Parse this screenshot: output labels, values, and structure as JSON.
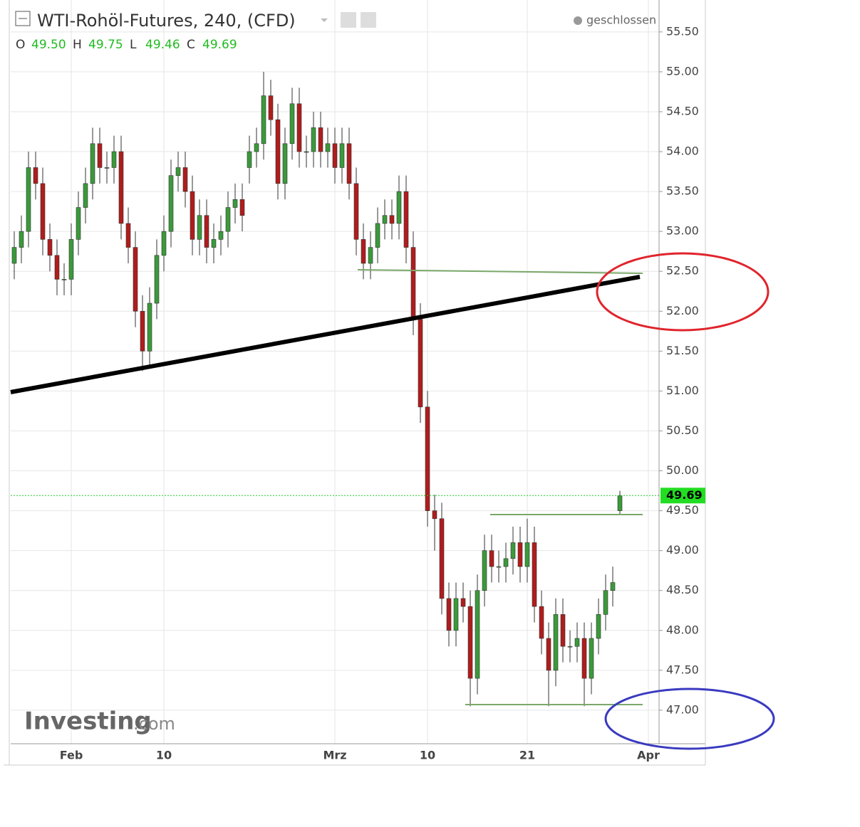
{
  "chart_data": {
    "type": "candlestick",
    "title": "WTI-Rohöl-Futures, 240, (CFD)",
    "status": "geschlossen",
    "ohlc_header": [
      {
        "label": "O",
        "value": "49.50"
      },
      {
        "label": "H",
        "value": "49.75"
      },
      {
        "label": "L",
        "value": "49.46"
      },
      {
        "label": "C",
        "value": "49.69"
      }
    ],
    "watermark": {
      "brand": "Investing",
      "suffix": ".com"
    },
    "up_color": "#3a9a3a",
    "down_color": "#b01c1c",
    "grid": true,
    "ylim": [
      46.58,
      55.9
    ],
    "yticks": [
      {
        "value": 47,
        "label": "47.00"
      },
      {
        "value": 47.5,
        "label": "47.50"
      },
      {
        "value": 48,
        "label": "48.00"
      },
      {
        "value": 48.5,
        "label": "48.50"
      },
      {
        "value": 49,
        "label": "49.00"
      },
      {
        "value": 49.5,
        "label": "49.50"
      },
      {
        "value": 50,
        "label": "50.00"
      },
      {
        "value": 50.5,
        "label": "50.50"
      },
      {
        "value": 51,
        "label": "51.00"
      },
      {
        "value": 51.5,
        "label": "51.50"
      },
      {
        "value": 52,
        "label": "52.00"
      },
      {
        "value": 52.5,
        "label": "52.50"
      },
      {
        "value": 53,
        "label": "53.00"
      },
      {
        "value": 53.5,
        "label": "53.50"
      },
      {
        "value": 54,
        "label": "54.00"
      },
      {
        "value": 54.5,
        "label": "54.50"
      },
      {
        "value": 55,
        "label": "55.00"
      },
      {
        "value": 55.5,
        "label": "55.50"
      }
    ],
    "last_price": {
      "value": 49.69,
      "label": "49.69"
    },
    "categories": [
      null,
      null,
      null,
      null,
      null,
      null,
      null,
      null,
      "Feb",
      null,
      null,
      null,
      null,
      null,
      null,
      null,
      null,
      null,
      null,
      null,
      null,
      "10",
      null,
      null,
      null,
      null,
      null,
      null,
      null,
      null,
      null,
      null,
      null,
      null,
      null,
      null,
      null,
      null,
      null,
      null,
      null,
      null,
      null,
      null,
      null,
      "Mrz",
      null,
      null,
      null,
      null,
      null,
      null,
      null,
      null,
      null,
      null,
      null,
      null,
      "10",
      null,
      null,
      null,
      null,
      null,
      null,
      null,
      null,
      null,
      null,
      null,
      null,
      null,
      "21",
      null,
      null,
      null,
      null,
      null,
      null,
      null,
      null,
      null,
      null,
      null,
      null,
      null,
      null,
      null,
      null,
      "Apr",
      null
    ],
    "open": [
      52.6,
      52.8,
      53.0,
      53.8,
      53.6,
      52.9,
      52.7,
      52.4,
      52.4,
      52.9,
      53.3,
      53.6,
      54.1,
      53.8,
      53.8,
      54.0,
      53.1,
      52.8,
      52.0,
      51.5,
      52.1,
      52.7,
      53.0,
      53.7,
      53.8,
      53.5,
      52.9,
      53.2,
      52.8,
      52.9,
      53.0,
      53.3,
      53.4,
      53.8,
      54.0,
      54.1,
      54.7,
      54.4,
      53.6,
      54.1,
      54.6,
      54.0,
      54.0,
      54.3,
      54.0,
      54.1,
      53.8,
      54.1,
      53.6,
      52.9,
      52.6,
      52.8,
      53.1,
      53.2,
      53.1,
      53.5,
      52.8,
      51.9,
      50.8,
      49.5,
      49.4,
      48.4,
      48.0,
      48.4,
      48.3,
      47.4,
      48.5,
      49.0,
      48.8,
      48.8,
      48.9,
      49.1,
      48.8,
      49.1,
      48.3,
      47.9,
      47.5,
      48.2,
      47.8,
      47.8,
      47.9,
      47.4,
      47.9,
      48.2,
      48.5,
      49.5,
      null,
      null,
      null,
      null,
      null
    ],
    "high": [
      53.0,
      53.2,
      54.0,
      54.0,
      53.8,
      53.1,
      52.9,
      52.6,
      53.1,
      53.5,
      53.8,
      54.3,
      54.3,
      54.0,
      54.2,
      54.2,
      53.3,
      53.0,
      52.2,
      52.3,
      52.9,
      53.2,
      53.9,
      54.0,
      54.0,
      53.7,
      53.4,
      53.4,
      53.1,
      53.2,
      53.5,
      53.6,
      53.6,
      54.2,
      54.3,
      55.0,
      54.9,
      54.6,
      54.3,
      54.8,
      54.8,
      54.2,
      54.5,
      54.5,
      54.3,
      54.3,
      54.3,
      54.3,
      53.8,
      53.1,
      53.0,
      53.3,
      53.4,
      53.4,
      53.7,
      53.7,
      53.0,
      52.1,
      51.0,
      49.7,
      49.6,
      48.6,
      48.6,
      48.6,
      48.5,
      48.7,
      49.2,
      49.2,
      49.0,
      49.1,
      49.3,
      49.3,
      49.4,
      49.3,
      48.5,
      48.1,
      48.4,
      48.4,
      48.0,
      48.1,
      48.1,
      48.1,
      48.4,
      48.7,
      48.8,
      49.75,
      null,
      null,
      null,
      null,
      null
    ],
    "low": [
      52.4,
      52.6,
      52.8,
      53.4,
      52.7,
      52.5,
      52.2,
      52.2,
      52.2,
      52.7,
      53.1,
      53.4,
      53.6,
      53.6,
      53.6,
      52.9,
      52.6,
      51.8,
      51.25,
      51.3,
      51.9,
      52.5,
      52.8,
      53.5,
      53.3,
      52.7,
      52.7,
      52.6,
      52.6,
      52.7,
      52.8,
      53.1,
      53.0,
      53.6,
      53.8,
      53.9,
      54.2,
      53.4,
      53.4,
      53.9,
      53.8,
      53.8,
      53.8,
      53.8,
      53.8,
      53.6,
      53.6,
      53.4,
      52.7,
      52.4,
      52.4,
      52.6,
      52.9,
      52.9,
      52.9,
      52.6,
      51.7,
      50.6,
      49.3,
      49.0,
      48.2,
      47.8,
      47.8,
      48.1,
      47.05,
      47.2,
      48.3,
      48.6,
      48.6,
      48.6,
      48.7,
      48.6,
      48.6,
      48.1,
      47.7,
      47.05,
      47.3,
      47.6,
      47.6,
      47.6,
      47.05,
      47.2,
      47.7,
      48.0,
      48.3,
      49.46,
      null,
      null,
      null,
      null,
      null
    ],
    "close": [
      52.8,
      53.0,
      53.8,
      53.6,
      52.9,
      52.7,
      52.4,
      52.4,
      52.9,
      53.3,
      53.6,
      54.1,
      53.8,
      53.8,
      54.0,
      53.1,
      52.8,
      52.0,
      51.5,
      52.1,
      52.7,
      53.0,
      53.7,
      53.8,
      53.5,
      52.9,
      53.2,
      52.8,
      52.9,
      53.0,
      53.3,
      53.4,
      53.2,
      54.0,
      54.1,
      54.7,
      54.4,
      53.6,
      54.1,
      54.6,
      54.0,
      54.0,
      54.3,
      54.0,
      54.1,
      53.8,
      54.1,
      53.6,
      52.9,
      52.6,
      52.8,
      53.1,
      53.2,
      53.1,
      53.5,
      52.8,
      51.9,
      50.8,
      49.5,
      49.4,
      48.4,
      48.0,
      48.4,
      48.3,
      47.4,
      48.5,
      49.0,
      48.8,
      48.8,
      48.9,
      49.1,
      48.8,
      49.1,
      48.3,
      47.9,
      47.5,
      48.2,
      47.8,
      47.8,
      47.9,
      47.4,
      47.9,
      48.2,
      48.5,
      48.6,
      49.69,
      null,
      null,
      null,
      null,
      null
    ]
  }
}
